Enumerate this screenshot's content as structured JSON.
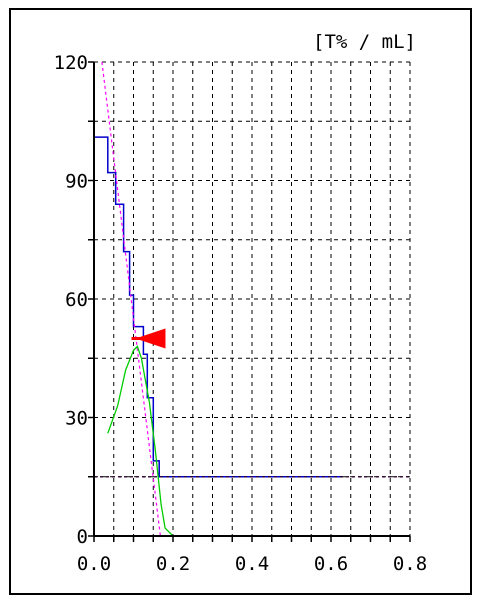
{
  "chart_data": {
    "type": "line",
    "unit_label": "[T% / mL]",
    "x_ticks": [
      "0.0",
      "0.2",
      "0.4",
      "0.6",
      "0.8"
    ],
    "y_ticks": [
      "0",
      "30",
      "60",
      "90",
      "120"
    ],
    "xlim": [
      0,
      0.8
    ],
    "ylim": [
      0,
      120
    ],
    "grid": true,
    "series": [
      {
        "color": "#0000cc",
        "style": "step",
        "points": [
          [
            0.0,
            101
          ],
          [
            0.035,
            101
          ],
          [
            0.035,
            92
          ],
          [
            0.055,
            92
          ],
          [
            0.055,
            84
          ],
          [
            0.075,
            84
          ],
          [
            0.075,
            72
          ],
          [
            0.09,
            72
          ],
          [
            0.09,
            61
          ],
          [
            0.1,
            61
          ],
          [
            0.1,
            53
          ],
          [
            0.125,
            53
          ],
          [
            0.125,
            46
          ],
          [
            0.135,
            46
          ],
          [
            0.135,
            35
          ],
          [
            0.15,
            35
          ],
          [
            0.15,
            19
          ],
          [
            0.165,
            19
          ],
          [
            0.165,
            15
          ],
          [
            0.63,
            15
          ]
        ]
      },
      {
        "color": "#ff00ff",
        "style": "dashed",
        "points": [
          [
            0.02,
            120
          ],
          [
            0.168,
            0
          ]
        ]
      },
      {
        "color": "#00cc00",
        "style": "solid",
        "points": [
          [
            0.035,
            26
          ],
          [
            0.06,
            33
          ],
          [
            0.08,
            42
          ],
          [
            0.1,
            47
          ],
          [
            0.11,
            48
          ],
          [
            0.12,
            45
          ],
          [
            0.14,
            34
          ],
          [
            0.155,
            22
          ],
          [
            0.17,
            8
          ],
          [
            0.18,
            2
          ],
          [
            0.2,
            0
          ],
          [
            0.6,
            0
          ]
        ]
      },
      {
        "color": "#ff00ff",
        "style": "dashed",
        "points": [
          [
            0.0,
            15
          ],
          [
            0.8,
            15
          ]
        ]
      },
      {
        "color": "#000000",
        "style": "dashed",
        "points": [
          [
            0.0,
            15
          ],
          [
            0.8,
            15
          ]
        ]
      }
    ],
    "marker": {
      "type": "triangle",
      "color": "#ff0000",
      "x": 0.105,
      "y": 50
    }
  }
}
